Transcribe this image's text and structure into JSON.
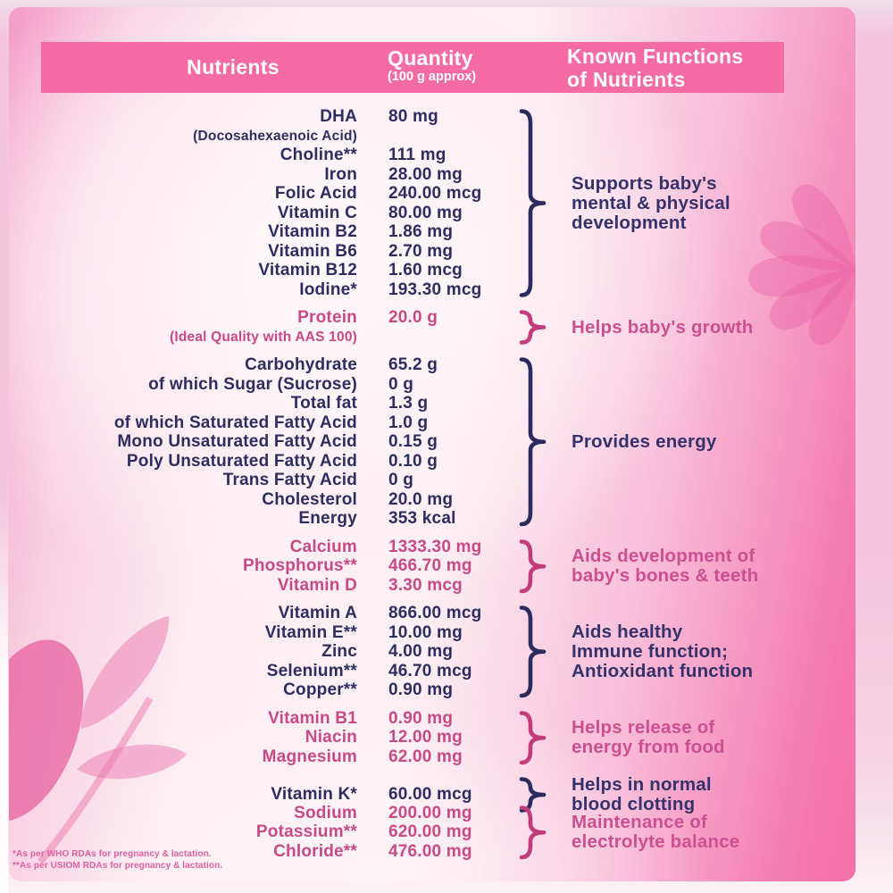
{
  "header": {
    "nutrients": "Nutrients",
    "quantity": "Quantity",
    "quantity_sub": "(100 g approx)",
    "functions": [
      "Known Functions",
      "of Nutrients"
    ]
  },
  "colors": {
    "band_pink": "#f66ba4",
    "text_navy": "#2e2d62",
    "text_pink": "#c84a85",
    "brace_navy": "#2b2b5e",
    "brace_pink": "#c23c7c",
    "background_pink": "#f5c7dd"
  },
  "icons": {
    "right_decoration": "petal-fan-motif",
    "bottom_left_decoration": "leaf-branch-motif",
    "group_connector": "curly-brace"
  },
  "table": {
    "groups": [
      {
        "theme": "navy",
        "rows": [
          {
            "name": "DHA",
            "qty": "80 mg"
          },
          {
            "name": "(Docosahexaenoic Acid)",
            "qty": "",
            "small": true
          },
          {
            "name": "Choline**",
            "qty": "111 mg"
          },
          {
            "name": "Iron",
            "qty": "28.00 mg"
          },
          {
            "name": "Folic Acid",
            "qty": "240.00 mcg"
          },
          {
            "name": "Vitamin C",
            "qty": "80.00 mg"
          },
          {
            "name": "Vitamin B2",
            "qty": "1.86 mg"
          },
          {
            "name": "Vitamin B6",
            "qty": "2.70 mg"
          },
          {
            "name": "Vitamin B12",
            "qty": "1.60 mcg"
          },
          {
            "name": "Iodine*",
            "qty": "193.30 mcg"
          }
        ],
        "function_lines": [
          "Supports baby's",
          "mental & physical",
          "development"
        ]
      },
      {
        "theme": "pink",
        "rows": [
          {
            "name": "Protein",
            "qty": "20.0 g"
          },
          {
            "name": "(Ideal Quality with AAS 100)",
            "qty": "",
            "small": true
          }
        ],
        "function_lines": [
          "Helps baby's growth"
        ]
      },
      {
        "theme": "navy",
        "rows": [
          {
            "name": "Carbohydrate",
            "qty": "65.2 g"
          },
          {
            "name": "of which Sugar (Sucrose)",
            "qty": "0 g"
          },
          {
            "name": "Total fat",
            "qty": "1.3 g"
          },
          {
            "name": "of which Saturated Fatty Acid",
            "qty": "1.0 g"
          },
          {
            "name": "Mono Unsaturated Fatty Acid",
            "qty": "0.15 g"
          },
          {
            "name": "Poly Unsaturated Fatty Acid",
            "qty": "0.10 g"
          },
          {
            "name": "Trans Fatty Acid",
            "qty": "0 g"
          },
          {
            "name": "Cholesterol",
            "qty": "20.0 mg"
          },
          {
            "name": "Energy",
            "qty": "353 kcal"
          }
        ],
        "function_lines": [
          "Provides energy"
        ]
      },
      {
        "theme": "pink",
        "rows": [
          {
            "name": "Calcium",
            "qty": "1333.30 mg"
          },
          {
            "name": "Phosphorus**",
            "qty": "466.70 mg"
          },
          {
            "name": "Vitamin D",
            "qty": "3.30 mcg"
          }
        ],
        "function_lines": [
          "Aids development of",
          "baby's bones & teeth"
        ]
      },
      {
        "theme": "navy",
        "rows": [
          {
            "name": "Vitamin A",
            "qty": "866.00 mcg"
          },
          {
            "name": "Vitamin E**",
            "qty": "10.00 mg"
          },
          {
            "name": "Zinc",
            "qty": "4.00 mg"
          },
          {
            "name": "Selenium**",
            "qty": "46.70 mcg"
          },
          {
            "name": "Copper**",
            "qty": "0.90 mg"
          }
        ],
        "function_lines": [
          "Aids healthy",
          "Immune function;",
          "Antioxidant function"
        ]
      },
      {
        "theme": "pink",
        "rows": [
          {
            "name": "Vitamin B1",
            "qty": "0.90 mg"
          },
          {
            "name": "Niacin",
            "qty": "12.00 mg"
          },
          {
            "name": "Magnesium",
            "qty": "62.00 mg"
          }
        ],
        "function_lines": [
          "Helps release of",
          "energy from food"
        ]
      },
      {
        "theme": "navy",
        "rows": [
          {
            "name": "Vitamin K*",
            "qty": "60.00 mcg"
          }
        ],
        "function_lines": [
          "Helps in normal",
          "blood clotting"
        ]
      },
      {
        "theme": "pink",
        "rows": [
          {
            "name": "Sodium",
            "qty": "200.00 mg"
          },
          {
            "name": "Potassium**",
            "qty": "620.00 mg"
          },
          {
            "name": "Chloride**",
            "qty": "476.00 mg"
          }
        ],
        "function_lines": [
          "Maintenance of",
          "electrolyte balance"
        ]
      }
    ]
  },
  "footnotes": [
    "*As per WHO RDAs for pregnancy & lactation.",
    "**As per USIOM RDAs for pregnancy & lactation."
  ]
}
